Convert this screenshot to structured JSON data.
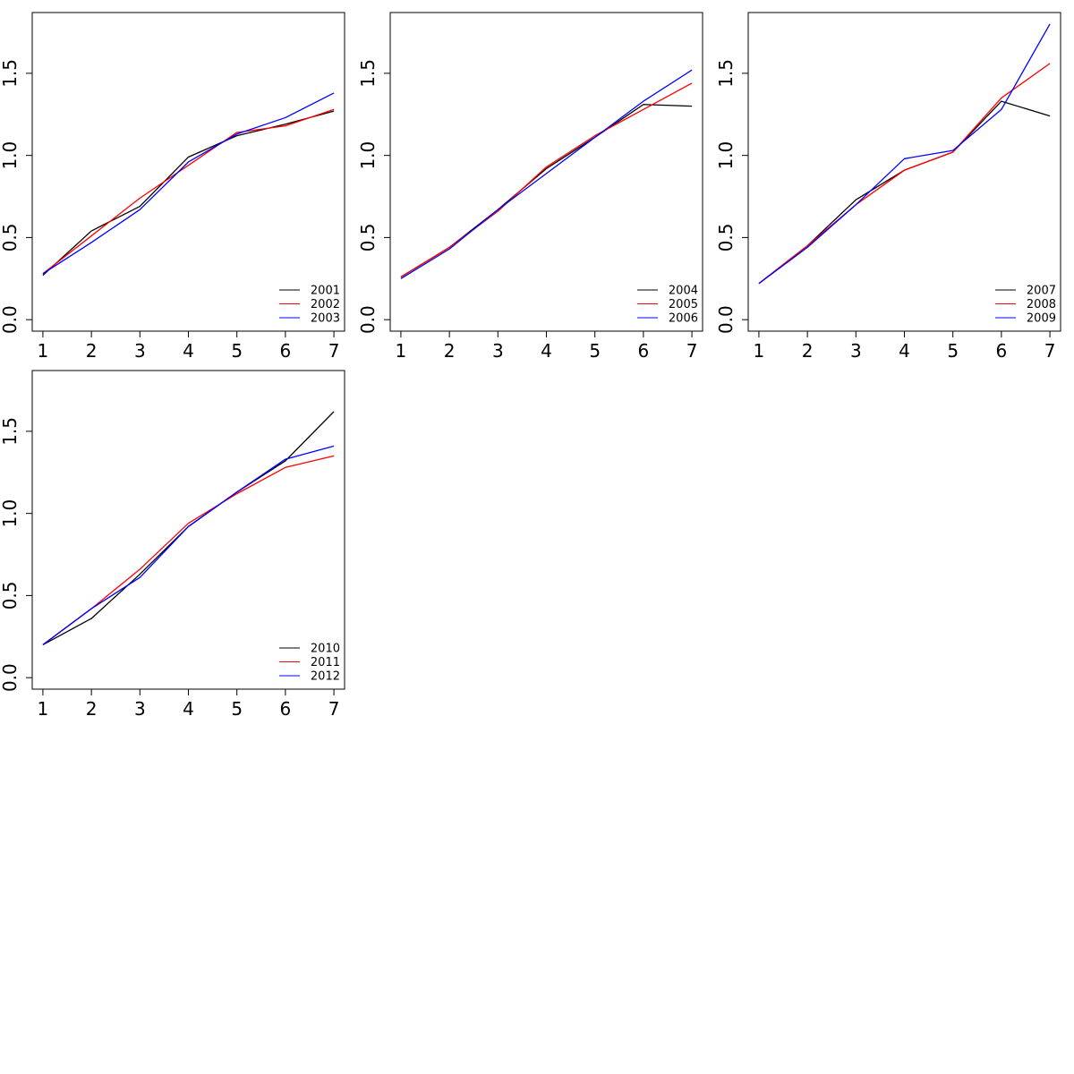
{
  "colors": {
    "background": "#ffffff",
    "axis": "#000000"
  },
  "chart_data": [
    {
      "type": "line",
      "title": "",
      "xlabel": "",
      "ylabel": "",
      "x": [
        1,
        2,
        3,
        4,
        5,
        6,
        7
      ],
      "xlim": [
        0.78,
        7.22
      ],
      "ylim": [
        -0.07,
        1.87
      ],
      "xticks": [
        1,
        2,
        3,
        4,
        5,
        6,
        7
      ],
      "yticks": [
        0.0,
        0.5,
        1.0,
        1.5
      ],
      "ytick_labels": [
        "0.0",
        "0.5",
        "1.0",
        "1.5"
      ],
      "grid": false,
      "legend_position": "bottom-right",
      "series": [
        {
          "name": "2001",
          "color": "#000000",
          "values": [
            0.27,
            0.54,
            0.69,
            0.99,
            1.12,
            1.19,
            1.27
          ]
        },
        {
          "name": "2002",
          "color": "#ff0000",
          "values": [
            0.28,
            0.51,
            0.74,
            0.94,
            1.14,
            1.18,
            1.28
          ]
        },
        {
          "name": "2003",
          "color": "#0000ff",
          "values": [
            0.28,
            0.47,
            0.67,
            0.96,
            1.13,
            1.23,
            1.38
          ]
        }
      ]
    },
    {
      "type": "line",
      "title": "",
      "xlabel": "",
      "ylabel": "",
      "x": [
        1,
        2,
        3,
        4,
        5,
        6,
        7
      ],
      "xlim": [
        0.78,
        7.22
      ],
      "ylim": [
        -0.07,
        1.87
      ],
      "xticks": [
        1,
        2,
        3,
        4,
        5,
        6,
        7
      ],
      "yticks": [
        0.0,
        0.5,
        1.0,
        1.5
      ],
      "ytick_labels": [
        "0.0",
        "0.5",
        "1.0",
        "1.5"
      ],
      "grid": false,
      "legend_position": "bottom-right",
      "series": [
        {
          "name": "2004",
          "color": "#000000",
          "values": [
            0.26,
            0.44,
            0.67,
            0.92,
            1.11,
            1.31,
            1.3
          ]
        },
        {
          "name": "2005",
          "color": "#ff0000",
          "values": [
            0.26,
            0.44,
            0.66,
            0.93,
            1.12,
            1.28,
            1.44
          ]
        },
        {
          "name": "2006",
          "color": "#0000ff",
          "values": [
            0.25,
            0.43,
            0.67,
            0.89,
            1.11,
            1.33,
            1.52
          ]
        }
      ]
    },
    {
      "type": "line",
      "title": "",
      "xlabel": "",
      "ylabel": "",
      "x": [
        1,
        2,
        3,
        4,
        5,
        6,
        7
      ],
      "xlim": [
        0.78,
        7.22
      ],
      "ylim": [
        -0.07,
        1.87
      ],
      "xticks": [
        1,
        2,
        3,
        4,
        5,
        6,
        7
      ],
      "yticks": [
        0.0,
        0.5,
        1.0,
        1.5
      ],
      "ytick_labels": [
        "0.0",
        "0.5",
        "1.0",
        "1.5"
      ],
      "grid": false,
      "legend_position": "bottom-right",
      "series": [
        {
          "name": "2007",
          "color": "#000000",
          "values": [
            0.22,
            0.45,
            0.73,
            0.91,
            1.02,
            1.33,
            1.24
          ]
        },
        {
          "name": "2008",
          "color": "#ff0000",
          "values": [
            0.22,
            0.45,
            0.7,
            0.91,
            1.02,
            1.35,
            1.56
          ]
        },
        {
          "name": "2009",
          "color": "#0000ff",
          "values": [
            0.22,
            0.44,
            0.7,
            0.98,
            1.03,
            1.28,
            1.8
          ]
        }
      ]
    },
    {
      "type": "line",
      "title": "",
      "xlabel": "",
      "ylabel": "",
      "x": [
        1,
        2,
        3,
        4,
        5,
        6,
        7
      ],
      "xlim": [
        0.78,
        7.22
      ],
      "ylim": [
        -0.07,
        1.87
      ],
      "xticks": [
        1,
        2,
        3,
        4,
        5,
        6,
        7
      ],
      "yticks": [
        0.0,
        0.5,
        1.0,
        1.5
      ],
      "ytick_labels": [
        "0.0",
        "0.5",
        "1.0",
        "1.5"
      ],
      "grid": false,
      "legend_position": "bottom-right",
      "series": [
        {
          "name": "2010",
          "color": "#000000",
          "values": [
            0.2,
            0.36,
            0.63,
            0.92,
            1.13,
            1.32,
            1.62
          ]
        },
        {
          "name": "2011",
          "color": "#ff0000",
          "values": [
            0.2,
            0.42,
            0.66,
            0.94,
            1.12,
            1.28,
            1.35
          ]
        },
        {
          "name": "2012",
          "color": "#0000ff",
          "values": [
            0.2,
            0.42,
            0.61,
            0.92,
            1.13,
            1.33,
            1.41
          ]
        }
      ]
    }
  ]
}
